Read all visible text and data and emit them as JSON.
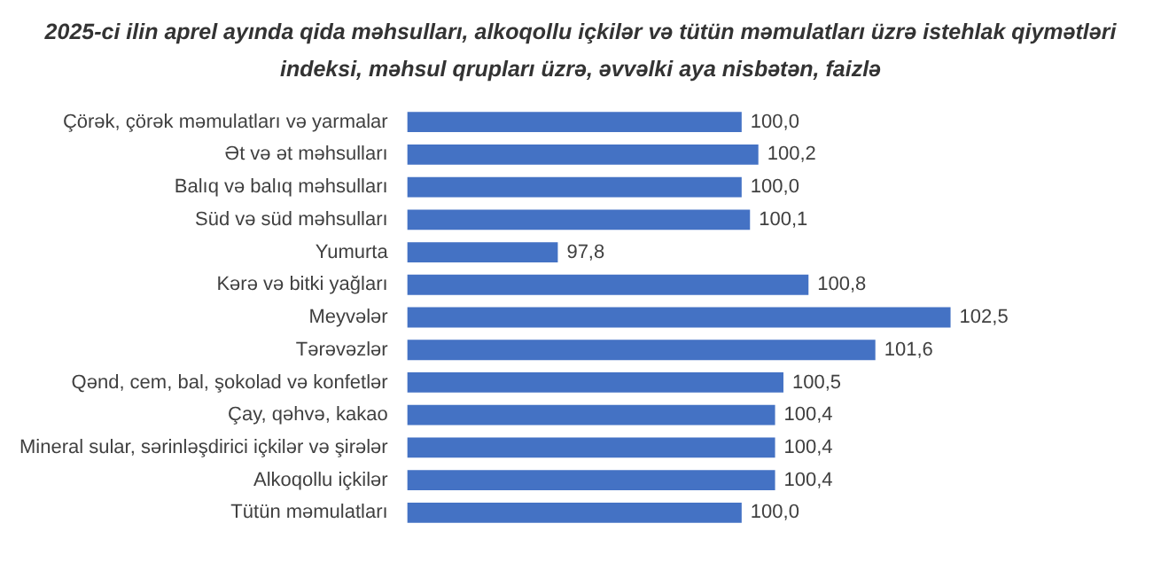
{
  "chart_data": {
    "type": "bar",
    "orientation": "horizontal",
    "title": "2025-ci ilin aprel ayında qida məhsulları, alkoqollu içkilər və tütün məmulatları üzrə istehlak qiymətləri indeksi, məhsul qrupları üzrə, əvvəlki aya nisbətən, faizlə",
    "categories": [
      "Çörək, çörək məmulatları və yarmalar",
      "Ət və ət məhsulları",
      "Balıq və balıq məhsulları",
      "Süd və süd məhsulları",
      "Yumurta",
      "Kərə və bitki yağları",
      "Meyvələr",
      "Tərəvəzlər",
      "Qənd, cem, bal, şokolad və konfetlər",
      "Çay, qəhvə, kakao",
      "Mineral sular, sərinləşdirici içkilər və şirələr",
      "Alkoqollu içkilər",
      "Tütün məmulatları"
    ],
    "values": [
      100.0,
      100.2,
      100.0,
      100.1,
      97.8,
      100.8,
      102.5,
      101.6,
      100.5,
      100.4,
      100.4,
      100.4,
      100.0
    ],
    "value_labels": [
      "100,0",
      "100,2",
      "100,0",
      "100,1",
      "97,8",
      "100,8",
      "102,5",
      "101,6",
      "100,5",
      "100,4",
      "100,4",
      "100,4",
      "100,0"
    ],
    "color": "#4472c4",
    "tick_labels": "y",
    "grid": false,
    "legend": false
  }
}
